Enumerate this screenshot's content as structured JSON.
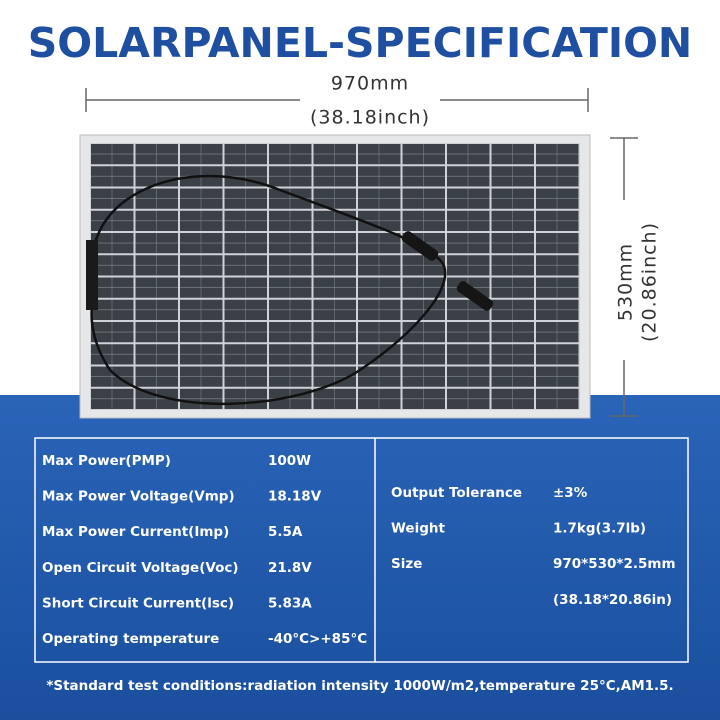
{
  "header": {
    "title": "SOLARPANEL-SPECIFICATION"
  },
  "dimensions": {
    "width_mm": "970mm",
    "width_in": "(38.18inch)",
    "height_mm": "530mm",
    "height_in": "(20.86inch)"
  },
  "specs": {
    "left": [
      {
        "label": "Max Power(PMP)",
        "value": "100W"
      },
      {
        "label": "Max Power Voltage(Vmp)",
        "value": "18.18V"
      },
      {
        "label": "Max Power Current(Imp)",
        "value": "5.5A"
      },
      {
        "label": "Open Circuit Voltage(Voc)",
        "value": "21.8V"
      },
      {
        "label": "Short Circuit Current(lsc)",
        "value": "5.83A"
      },
      {
        "label": "Operating temperature",
        "value": "-40°C>+85°C"
      }
    ],
    "right": [
      {
        "label": "Output Tolerance",
        "value": "±3%"
      },
      {
        "label": "Weight",
        "value": "1.7kg(3.7lb)"
      },
      {
        "label": "Size",
        "value": "970*530*2.5mm"
      },
      {
        "value": "(38.18*20.86in)"
      }
    ]
  },
  "footnote": "*Standard test conditions:radiation intensity 1000W/m2,temperature 25°C,AM1.5."
}
